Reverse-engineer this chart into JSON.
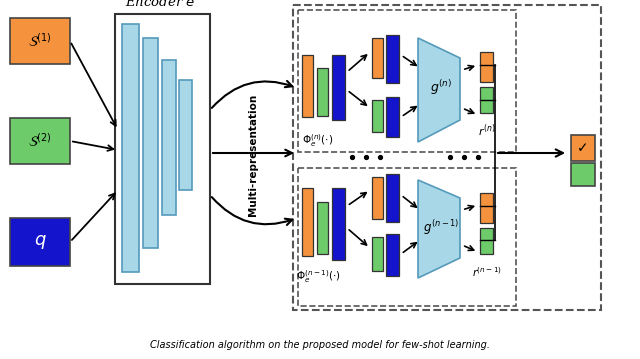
{
  "bg_color": "#ffffff",
  "orange": "#F5923E",
  "green": "#6DCB6A",
  "blue": "#1414CC",
  "light_blue": "#A8D8E8",
  "encoder_bar_color": "#A8D8E8",
  "encoder_bar_edge": "#5599BB",
  "text_color": "#000000",
  "arrow_color": "#000000",
  "dash_color": "#555555",
  "S1_label": "$\\mathcal{S}^{(1)}$",
  "S2_label": "$\\mathcal{S}^{(2)}$",
  "q_label": "$q$",
  "enc_label": "Encoder $e$",
  "multirepn_label": "Multi-representation",
  "gn_label": "$g^{(n)}$",
  "gn1_label": "$g^{(n-1)}$",
  "rn_label": "$r^{(n)}$",
  "rn1_label": "$r^{(n-1)}$",
  "phin_label": "$\\Phi_e^{(n)}(\\cdot)$",
  "phin1_label": "$\\Phi_e^{(n-1)}(\\cdot)$",
  "caption": "Classification algorithm on the proposed model for few-shot learning."
}
